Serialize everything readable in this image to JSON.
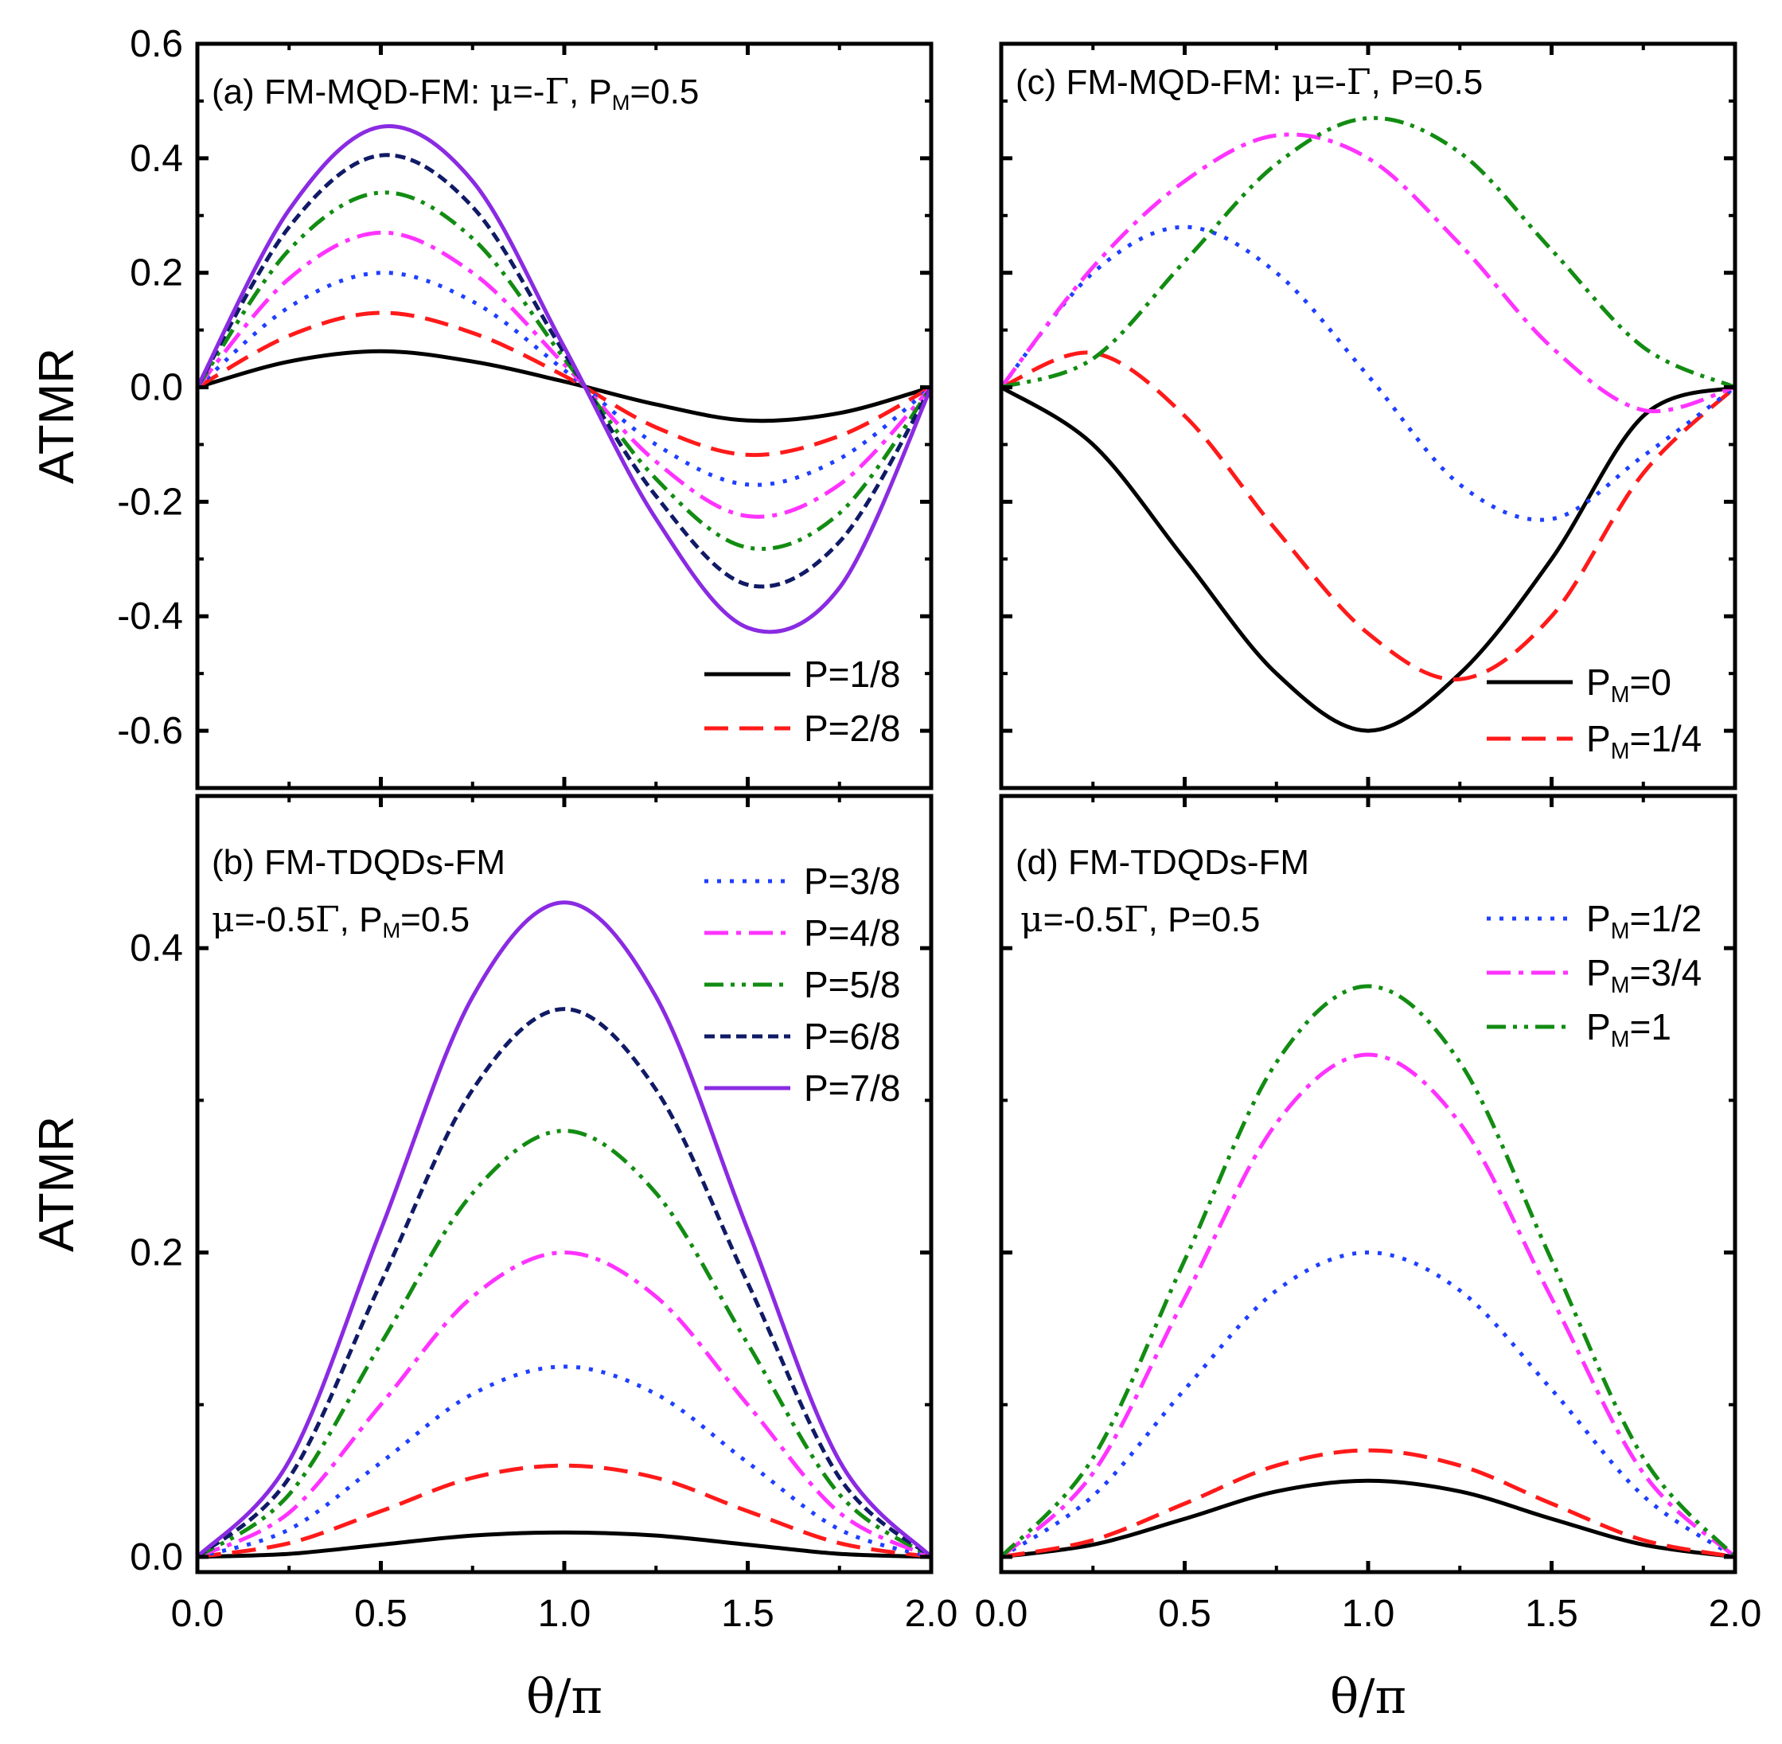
{
  "colors": {
    "black": "#000000",
    "red": "#ff1a1a",
    "blue": "#1f3fff",
    "magenta": "#ff33ff",
    "green": "#128c12",
    "navy": "#101a66",
    "violet": "#8a2be2"
  },
  "chart_data": [
    {
      "panel": "a",
      "type": "line",
      "label_parts": [
        "(a) FM-MQD-FM:  ",
        "μ",
        "=-",
        "Γ",
        ", P",
        "M",
        "=0.5"
      ],
      "xlim": [
        0,
        2
      ],
      "ylim": [
        -0.7,
        0.6
      ],
      "yticks": [
        -0.6,
        -0.4,
        -0.2,
        0.0,
        0.2,
        0.4,
        0.6
      ],
      "ytick_labels": [
        "-0.6",
        "-0.4",
        "-0.2",
        "0.0",
        "0.2",
        "0.4",
        "0.6"
      ],
      "ylabel": "ATMR",
      "legend": {
        "position": "bottom-right",
        "items": [
          0,
          1
        ]
      },
      "series": [
        {
          "name": "P=1/8",
          "style": "solid",
          "color": "#000000",
          "x": [
            0,
            0.25,
            0.5,
            0.75,
            1.0,
            1.25,
            1.5,
            1.75,
            2.0
          ],
          "values": [
            0,
            0.045,
            0.063,
            0.045,
            0.01,
            -0.03,
            -0.058,
            -0.045,
            0
          ]
        },
        {
          "name": "P=2/8",
          "style": "dash",
          "color": "#ff1a1a",
          "x": [
            0,
            0.25,
            0.5,
            0.75,
            1.0,
            1.25,
            1.5,
            1.75,
            2.0
          ],
          "values": [
            0,
            0.09,
            0.13,
            0.095,
            0.02,
            -0.07,
            -0.118,
            -0.085,
            0
          ]
        },
        {
          "name": "P=3/8",
          "style": "dot",
          "color": "#1f3fff",
          "x": [
            0,
            0.25,
            0.5,
            0.75,
            1.0,
            1.25,
            1.5,
            1.75,
            2.0
          ],
          "values": [
            0,
            0.14,
            0.2,
            0.15,
            0.03,
            -0.1,
            -0.17,
            -0.125,
            0
          ]
        },
        {
          "name": "P=4/8",
          "style": "dashdot",
          "color": "#ff33ff",
          "x": [
            0,
            0.25,
            0.5,
            0.75,
            1.0,
            1.25,
            1.5,
            1.75,
            2.0
          ],
          "values": [
            0,
            0.19,
            0.27,
            0.2,
            0.04,
            -0.13,
            -0.225,
            -0.17,
            0
          ]
        },
        {
          "name": "P=5/8",
          "style": "dashdotdot",
          "color": "#128c12",
          "x": [
            0,
            0.25,
            0.5,
            0.75,
            1.0,
            1.25,
            1.5,
            1.75,
            2.0
          ],
          "values": [
            0,
            0.24,
            0.34,
            0.26,
            0.05,
            -0.16,
            -0.28,
            -0.22,
            0
          ]
        },
        {
          "name": "P=6/8",
          "style": "shortdash",
          "color": "#101a66",
          "x": [
            0,
            0.25,
            0.5,
            0.75,
            1.0,
            1.25,
            1.5,
            1.75,
            2.0
          ],
          "values": [
            0,
            0.28,
            0.405,
            0.315,
            0.06,
            -0.19,
            -0.345,
            -0.27,
            0
          ]
        },
        {
          "name": "P=7/8",
          "style": "solid",
          "color": "#8a2be2",
          "x": [
            0,
            0.25,
            0.5,
            0.75,
            1.0,
            1.25,
            1.5,
            1.75,
            2.0
          ],
          "values": [
            0,
            0.31,
            0.455,
            0.36,
            0.07,
            -0.23,
            -0.42,
            -0.35,
            0
          ]
        }
      ]
    },
    {
      "panel": "b",
      "type": "line",
      "label_parts": [
        "(b) FM-TDQDs-FM"
      ],
      "label2_parts": [
        "μ",
        "=-0.5",
        "Γ",
        ", P",
        "M",
        "=0.5"
      ],
      "xlim": [
        0,
        2
      ],
      "ylim": [
        -0.01,
        0.5
      ],
      "xticks": [
        0,
        0.5,
        1,
        1.5,
        2
      ],
      "xtick_labels": [
        "0.0",
        "0.5",
        "1.0",
        "1.5",
        "2.0"
      ],
      "yticks": [
        0.0,
        0.2,
        0.4
      ],
      "ytick_labels": [
        "0.0",
        "0.2",
        "0.4"
      ],
      "ylabel": "ATMR",
      "xlabel_parts": [
        "θ",
        "/",
        "π"
      ],
      "legend": {
        "position": "top-right",
        "items": [
          2,
          3,
          4,
          5,
          6
        ]
      },
      "series": [
        {
          "name": "P=1/8",
          "style": "solid",
          "color": "#000000",
          "x": [
            0,
            0.25,
            0.5,
            0.75,
            1.0,
            1.25,
            1.5,
            1.75,
            2.0
          ],
          "values": [
            0,
            0.002,
            0.008,
            0.014,
            0.016,
            0.014,
            0.008,
            0.002,
            0
          ]
        },
        {
          "name": "P=2/8",
          "style": "dash",
          "color": "#ff1a1a",
          "x": [
            0,
            0.25,
            0.5,
            0.75,
            1.0,
            1.25,
            1.5,
            1.75,
            2.0
          ],
          "values": [
            0,
            0.009,
            0.03,
            0.052,
            0.06,
            0.052,
            0.03,
            0.009,
            0
          ]
        },
        {
          "name": "P=3/8",
          "style": "dot",
          "color": "#1f3fff",
          "x": [
            0,
            0.25,
            0.5,
            0.75,
            1.0,
            1.25,
            1.5,
            1.75,
            2.0
          ],
          "values": [
            0,
            0.018,
            0.062,
            0.107,
            0.125,
            0.107,
            0.062,
            0.018,
            0
          ]
        },
        {
          "name": "P=4/8",
          "style": "dashdot",
          "color": "#ff33ff",
          "x": [
            0,
            0.25,
            0.5,
            0.75,
            1.0,
            1.25,
            1.5,
            1.75,
            2.0
          ],
          "values": [
            0,
            0.029,
            0.1,
            0.171,
            0.2,
            0.171,
            0.1,
            0.029,
            0
          ]
        },
        {
          "name": "P=5/8",
          "style": "dashdotdot",
          "color": "#128c12",
          "x": [
            0,
            0.25,
            0.5,
            0.75,
            1.0,
            1.25,
            1.5,
            1.75,
            2.0
          ],
          "values": [
            0,
            0.041,
            0.14,
            0.239,
            0.28,
            0.239,
            0.14,
            0.041,
            0
          ]
        },
        {
          "name": "P=6/8",
          "style": "shortdash",
          "color": "#101a66",
          "x": [
            0,
            0.25,
            0.5,
            0.75,
            1.0,
            1.25,
            1.5,
            1.75,
            2.0
          ],
          "values": [
            0,
            0.052,
            0.18,
            0.307,
            0.36,
            0.307,
            0.18,
            0.052,
            0
          ]
        },
        {
          "name": "P=7/8",
          "style": "solid",
          "color": "#8a2be2",
          "x": [
            0,
            0.25,
            0.5,
            0.75,
            1.0,
            1.25,
            1.5,
            1.75,
            2.0
          ],
          "values": [
            0,
            0.063,
            0.215,
            0.368,
            0.43,
            0.368,
            0.215,
            0.063,
            0
          ]
        }
      ]
    },
    {
      "panel": "c",
      "type": "line",
      "label_parts": [
        "(c) FM-MQD-FM: ",
        "μ",
        "=-",
        "Γ",
        ", P=0.5"
      ],
      "xlim": [
        0,
        2
      ],
      "ylim": [
        -0.7,
        0.6
      ],
      "yticks": [
        -0.6,
        -0.4,
        -0.2,
        0.0,
        0.2,
        0.4,
        0.6
      ],
      "legend": {
        "position": "bottom-right",
        "items": [
          0,
          1
        ]
      },
      "series": [
        {
          "name_parts": [
            "P",
            "M",
            "=0"
          ],
          "style": "solid",
          "color": "#000000",
          "x": [
            0,
            0.25,
            0.5,
            0.75,
            1.0,
            1.25,
            1.5,
            1.75,
            2.0
          ],
          "values": [
            0,
            -0.1,
            -0.3,
            -0.5,
            -0.6,
            -0.5,
            -0.3,
            -0.05,
            0
          ]
        },
        {
          "name_parts": [
            "P",
            "M",
            "=1/4"
          ],
          "style": "dash",
          "color": "#ff1a1a",
          "x": [
            0,
            0.25,
            0.5,
            0.75,
            1.0,
            1.25,
            1.5,
            1.75,
            2.0
          ],
          "values": [
            0,
            0.06,
            -0.05,
            -0.25,
            -0.43,
            -0.51,
            -0.4,
            -0.15,
            0
          ]
        },
        {
          "name_parts": [
            "P",
            "M",
            "=1/2"
          ],
          "style": "dot",
          "color": "#1f3fff",
          "x": [
            0,
            0.25,
            0.5,
            0.75,
            1.0,
            1.25,
            1.5,
            1.75,
            2.0
          ],
          "values": [
            0,
            0.2,
            0.28,
            0.2,
            0.02,
            -0.17,
            -0.23,
            -0.12,
            0
          ]
        },
        {
          "name_parts": [
            "P",
            "M",
            "=3/4"
          ],
          "style": "dashdot",
          "color": "#ff33ff",
          "x": [
            0,
            0.25,
            0.5,
            0.75,
            1.0,
            1.25,
            1.5,
            1.75,
            2.0
          ],
          "values": [
            0,
            0.21,
            0.36,
            0.44,
            0.4,
            0.25,
            0.07,
            -0.04,
            0
          ]
        },
        {
          "name_parts": [
            "P",
            "M",
            "=1"
          ],
          "style": "dashdotdot",
          "color": "#128c12",
          "x": [
            0,
            0.25,
            0.5,
            0.75,
            1.0,
            1.25,
            1.5,
            1.75,
            2.0
          ],
          "values": [
            0,
            0.05,
            0.22,
            0.39,
            0.47,
            0.41,
            0.24,
            0.07,
            0
          ]
        }
      ]
    },
    {
      "panel": "d",
      "type": "line",
      "label_parts": [
        "(d) FM-TDQDs-FM"
      ],
      "label2_parts": [
        "μ",
        "=-0.5",
        "Γ",
        ", P=0.5"
      ],
      "xlim": [
        0,
        2
      ],
      "ylim": [
        -0.01,
        0.5
      ],
      "xticks": [
        0,
        0.5,
        1,
        1.5,
        2
      ],
      "xtick_labels": [
        "0.0",
        "0.5",
        "1.0",
        "1.5",
        "2.0"
      ],
      "yticks": [
        0.0,
        0.2,
        0.4
      ],
      "xlabel_parts": [
        "θ",
        "/",
        "π"
      ],
      "legend": {
        "position": "top-right",
        "items": [
          2,
          3,
          4
        ]
      },
      "series": [
        {
          "name_parts": [
            "P",
            "M",
            "=0"
          ],
          "style": "solid",
          "color": "#000000",
          "x": [
            0,
            0.25,
            0.5,
            0.75,
            1.0,
            1.25,
            1.5,
            1.75,
            2.0
          ],
          "values": [
            0,
            0.008,
            0.025,
            0.043,
            0.05,
            0.043,
            0.025,
            0.008,
            0
          ]
        },
        {
          "name_parts": [
            "P",
            "M",
            "=1/4"
          ],
          "style": "dash",
          "color": "#ff1a1a",
          "x": [
            0,
            0.25,
            0.5,
            0.75,
            1.0,
            1.25,
            1.5,
            1.75,
            2.0
          ],
          "values": [
            0,
            0.011,
            0.035,
            0.06,
            0.07,
            0.06,
            0.035,
            0.011,
            0
          ]
        },
        {
          "name_parts": [
            "P",
            "M",
            "=1/2"
          ],
          "style": "dot",
          "color": "#1f3fff",
          "x": [
            0,
            0.25,
            0.5,
            0.75,
            1.0,
            1.25,
            1.5,
            1.75,
            2.0
          ],
          "values": [
            0,
            0.04,
            0.11,
            0.175,
            0.2,
            0.175,
            0.11,
            0.04,
            0
          ]
        },
        {
          "name_parts": [
            "P",
            "M",
            "=3/4"
          ],
          "style": "dashdot",
          "color": "#ff33ff",
          "x": [
            0,
            0.25,
            0.5,
            0.75,
            1.0,
            1.25,
            1.5,
            1.75,
            2.0
          ],
          "values": [
            0,
            0.055,
            0.17,
            0.285,
            0.33,
            0.285,
            0.17,
            0.055,
            0
          ]
        },
        {
          "name_parts": [
            "P",
            "M",
            "=1"
          ],
          "style": "dashdotdot",
          "color": "#128c12",
          "x": [
            0,
            0.25,
            0.5,
            0.75,
            1.0,
            1.25,
            1.5,
            1.75,
            2.0
          ],
          "values": [
            0,
            0.065,
            0.195,
            0.325,
            0.375,
            0.325,
            0.195,
            0.065,
            0
          ]
        }
      ]
    }
  ]
}
